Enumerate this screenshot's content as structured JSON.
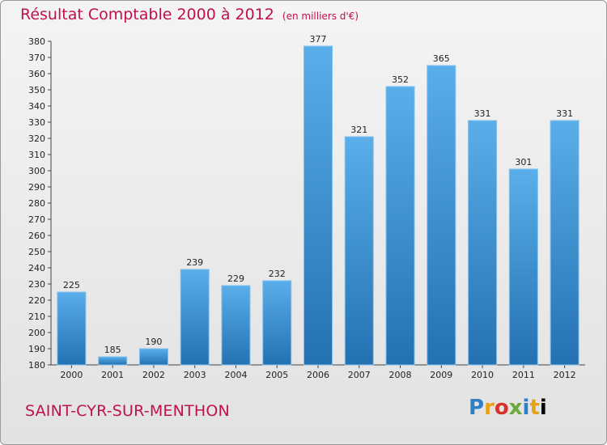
{
  "header": {
    "title": "Résultat Comptable 2000 à 2012",
    "subtitle": "(en milliers d'€)"
  },
  "footer": {
    "city": "SAINT-CYR-SUR-MENTHON",
    "logo_letters": [
      "P",
      "r",
      "o",
      "x",
      "i",
      "t",
      "i"
    ]
  },
  "colors": {
    "title": "#c0104f",
    "bar_top": "#5aaee9",
    "bar_bottom": "#2471b2",
    "background": "#ebebeb"
  },
  "chart_data": {
    "type": "bar",
    "title": "Résultat Comptable 2000 à 2012",
    "subtitle": "(en milliers d'€)",
    "categories": [
      "2000",
      "2001",
      "2002",
      "2003",
      "2004",
      "2005",
      "2006",
      "2007",
      "2008",
      "2009",
      "2010",
      "2011",
      "2012"
    ],
    "values": [
      225,
      185,
      190,
      239,
      229,
      232,
      377,
      321,
      352,
      365,
      331,
      301,
      331
    ],
    "ylim": [
      180,
      380
    ],
    "ytick_step": 10,
    "grid": false,
    "legend": "none"
  }
}
